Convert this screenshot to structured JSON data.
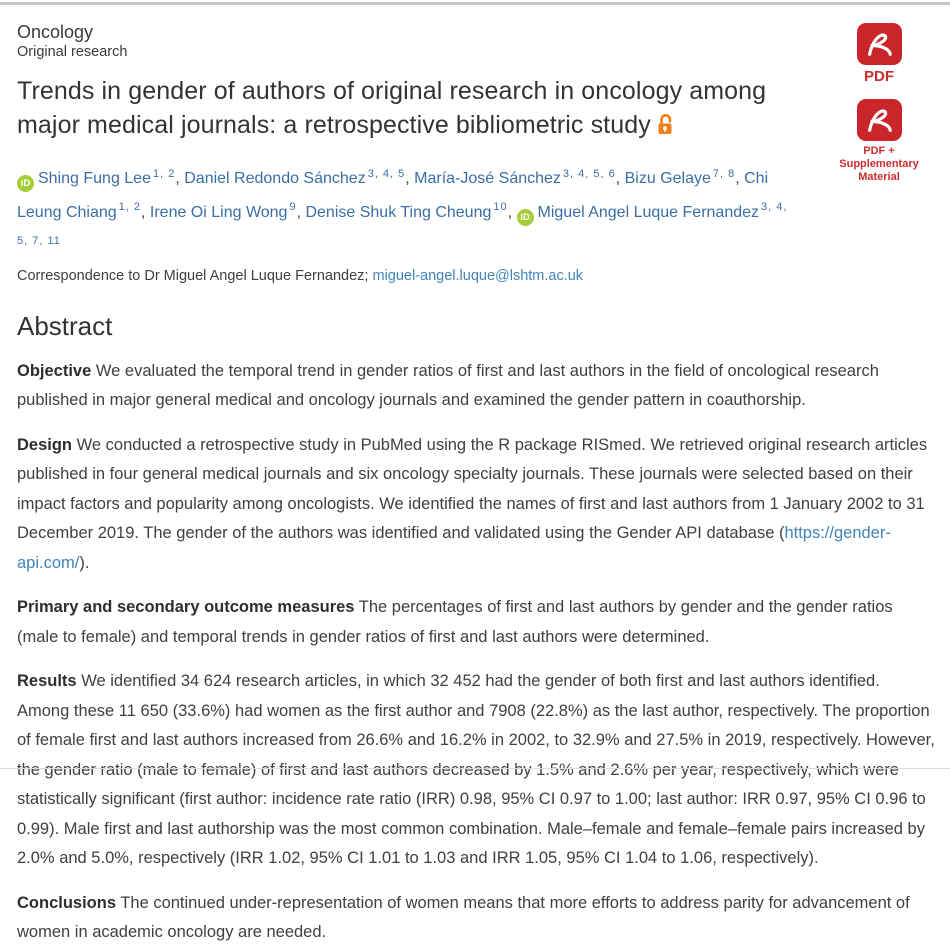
{
  "header": {
    "section": "Oncology",
    "article_type": "Original research",
    "title": "Trends in gender of authors of original research in oncology among major medical journals: a retrospective bibliometric study"
  },
  "downloads": {
    "pdf_label": "PDF",
    "pdf_supplementary_label": "PDF + Supplementary Material"
  },
  "authors": [
    {
      "name": "Shing Fung Lee",
      "affiliations": "1, 2",
      "orcid": true
    },
    {
      "name": "Daniel Redondo Sánchez",
      "affiliations": "3, 4, 5",
      "orcid": false
    },
    {
      "name": "María-José Sánchez",
      "affiliations": "3, 4, 5, 6",
      "orcid": false
    },
    {
      "name": "Bizu Gelaye",
      "affiliations": "7, 8",
      "orcid": false
    },
    {
      "name": "Chi Leung Chiang",
      "affiliations": "1, 2",
      "orcid": false
    },
    {
      "name": "Irene Oi Ling Wong",
      "affiliations": "9",
      "orcid": false
    },
    {
      "name": "Denise Shuk Ting Cheung",
      "affiliations": "10",
      "orcid": false
    },
    {
      "name": "Miguel Angel Luque Fernandez",
      "affiliations": "3, 4, 5, 7, 11",
      "orcid": true
    }
  ],
  "correspondence": {
    "text": "Correspondence to Dr Miguel Angel Luque Fernandez;",
    "email": "miguel-angel.luque@lshtm.ac.uk"
  },
  "abstract": {
    "heading": "Abstract",
    "sections": [
      {
        "label": "Objective",
        "text": "We evaluated the temporal trend in gender ratios of first and last authors in the field of oncological research published in major general medical and oncology journals and examined the gender pattern in coauthorship."
      },
      {
        "label": "Design",
        "text_before_link": "We conducted a retrospective study in PubMed using the R package RISmed. We retrieved original research articles published in four general medical journals and six oncology specialty journals. These journals were selected based on their impact factors and popularity among oncologists. We identified the names of first and last authors from 1 January 2002 to 31 December 2019. The gender of the authors was identified and validated using the Gender API database (",
        "link": "https://gender-api.com/",
        "text_after_link": ")."
      },
      {
        "label": "Primary and secondary outcome measures",
        "text": "The percentages of first and last authors by gender and the gender ratios (male to female) and temporal trends in gender ratios of first and last authors were determined."
      },
      {
        "label": "Results",
        "text": "We identified 34 624 research articles, in which 32 452 had the gender of both first and last authors identified. Among these 11 650 (33.6%) had women as the first author and 7908 (22.8%) as the last author, respectively. The proportion of female first and last authors increased from 26.6% and 16.2% in 2002, to 32.9% and 27.5% in 2019, respectively. However, the gender ratio (male to female) of first and last authors decreased by 1.5% and 2.6% per year, respectively, which were statistically significant (first author: incidence rate ratio (IRR) 0.98, 95% CI 0.97 to 1.00; last author: IRR 0.97, 95% CI 0.96 to 0.99). Male first and last authorship was the most common combination. Male–female and female–female pairs increased by 2.0% and 5.0%, respectively (IRR 1.02, 95% CI 1.01 to 1.03 and IRR 1.05, 95% CI 1.04 to 1.06, respectively)."
      },
      {
        "label": "Conclusions",
        "text": "The continued under-representation of women means that more efforts to address parity for advancement of women in academic oncology are needed."
      }
    ]
  },
  "colors": {
    "link_blue": "#3a6ea5",
    "orcid_green": "#a6ce39",
    "pdf_red": "#c9252b",
    "open_access_orange": "#ef7f1a",
    "text": "#404040",
    "title": "#333333"
  }
}
